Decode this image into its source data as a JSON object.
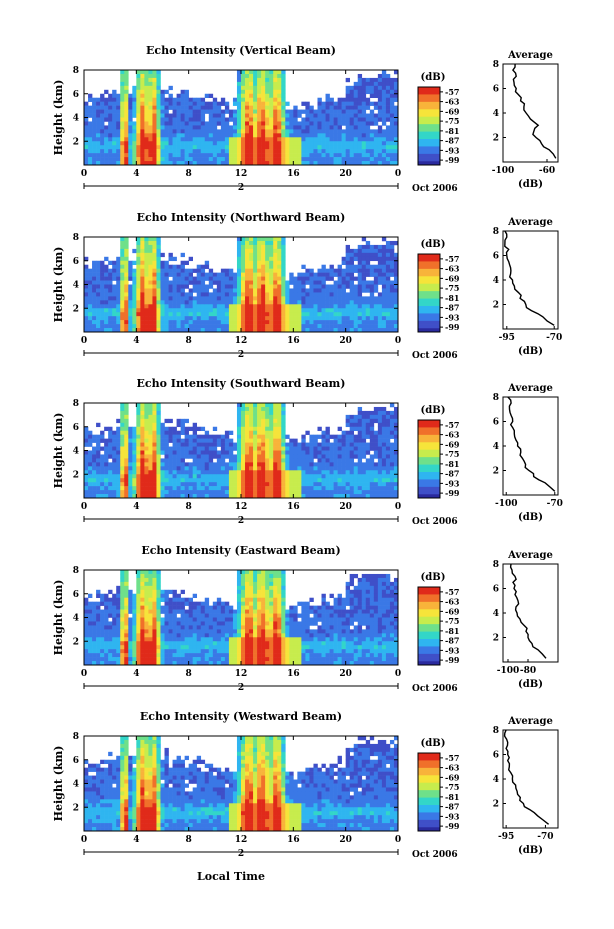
{
  "figure": {
    "xlabel": "Local Time",
    "date_label": "Oct 2006",
    "day_marker": "2",
    "colorbar_unit": "(dB)",
    "profile_title": "Average",
    "profile_xunit": "(dB)"
  },
  "colorbar": {
    "ticks": [
      "-57",
      "-63",
      "-69",
      "-75",
      "-81",
      "-87",
      "-93",
      "-99"
    ],
    "colors": [
      "#2a2a9e",
      "#3f4fc8",
      "#3a78e6",
      "#2fb5f0",
      "#33d6c8",
      "#6fe08a",
      "#c7ec4d",
      "#f6e43a",
      "#f8b33a",
      "#f0702a",
      "#e02a1a"
    ]
  },
  "chart_data": [
    {
      "type": "heatmap",
      "title": "Echo Intensity (Vertical Beam)",
      "xlabel": "",
      "ylabel": "Height (km)",
      "xlim": [
        0,
        24
      ],
      "ylim": [
        0,
        8
      ],
      "xticks": [
        "0",
        "4",
        "8",
        "12",
        "16",
        "20",
        "0"
      ],
      "yticks": [
        "8",
        "6",
        "4",
        "2"
      ],
      "colorbar_range_db": [
        -99,
        -57
      ],
      "profile": {
        "title": "Average",
        "xlabel": "(dB)",
        "xlim": [
          -100,
          -50
        ],
        "xticks": [
          "-100",
          "-60"
        ],
        "ylim": [
          0,
          8
        ],
        "yticks": [
          "8",
          "6",
          "4",
          "2"
        ],
        "height_km": [
          0.3,
          1,
          1.5,
          2,
          2.5,
          3,
          3.5,
          4,
          4.5,
          5,
          5.5,
          6,
          6.5,
          7,
          7.5,
          8
        ],
        "mean_db": [
          -52,
          -58,
          -65,
          -70,
          -72,
          -68,
          -75,
          -79,
          -81,
          -84,
          -86,
          -88,
          -90,
          -88,
          -91,
          -89
        ]
      }
    },
    {
      "type": "heatmap",
      "title": "Echo Intensity (Northward Beam)",
      "xlabel": "",
      "ylabel": "Height (km)",
      "xlim": [
        0,
        24
      ],
      "ylim": [
        0,
        8
      ],
      "xticks": [
        "0",
        "4",
        "8",
        "12",
        "16",
        "20",
        "0"
      ],
      "yticks": [
        "8",
        "6",
        "4",
        "2"
      ],
      "colorbar_range_db": [
        -99,
        -57
      ],
      "profile": {
        "title": "Average",
        "xlabel": "(dB)",
        "xlim": [
          -97,
          -68
        ],
        "xticks": [
          "-95",
          "-70"
        ],
        "ylim": [
          0,
          8
        ],
        "yticks": [
          "8",
          "6",
          "4",
          "2"
        ],
        "height_km": [
          0.3,
          1,
          1.5,
          2,
          2.5,
          3,
          3.5,
          4,
          4.5,
          5,
          5.5,
          6,
          6.5,
          7,
          7.5,
          8
        ],
        "mean_db": [
          -70,
          -76,
          -82,
          -85,
          -88,
          -89,
          -91,
          -92,
          -93,
          -93,
          -94,
          -95,
          -94,
          -96,
          -95,
          -96
        ]
      }
    },
    {
      "type": "heatmap",
      "title": "Echo Intensity (Southward Beam)",
      "xlabel": "",
      "ylabel": "Height (km)",
      "xlim": [
        0,
        24
      ],
      "ylim": [
        0,
        8
      ],
      "xticks": [
        "0",
        "4",
        "8",
        "12",
        "16",
        "20",
        "0"
      ],
      "yticks": [
        "8",
        "6",
        "4",
        "2"
      ],
      "colorbar_range_db": [
        -99,
        -57
      ],
      "profile": {
        "title": "Average",
        "xlabel": "(dB)",
        "xlim": [
          -102,
          -68
        ],
        "xticks": [
          "-100",
          "-70"
        ],
        "ylim": [
          0,
          8
        ],
        "yticks": [
          "8",
          "6",
          "4",
          "2"
        ],
        "height_km": [
          0.3,
          1,
          1.5,
          2,
          2.5,
          3,
          3.5,
          4,
          4.5,
          5,
          5.5,
          6,
          6.5,
          7,
          7.5,
          8
        ],
        "mean_db": [
          -70,
          -76,
          -83,
          -86,
          -88,
          -90,
          -91,
          -93,
          -94,
          -95,
          -96,
          -96,
          -97,
          -98,
          -97,
          -99
        ]
      }
    },
    {
      "type": "heatmap",
      "title": "Echo Intensity (Eastward Beam)",
      "xlabel": "",
      "ylabel": "Height (km)",
      "xlim": [
        0,
        24
      ],
      "ylim": [
        0,
        8
      ],
      "xticks": [
        "0",
        "4",
        "8",
        "12",
        "16",
        "20",
        "0"
      ],
      "yticks": [
        "8",
        "6",
        "4",
        "2"
      ],
      "colorbar_range_db": [
        -99,
        -57
      ],
      "profile": {
        "title": "Average",
        "xlabel": "(dB)",
        "xlim": [
          -105,
          -50
        ],
        "xticks": [
          "-100",
          "-80"
        ],
        "ylim": [
          0,
          8
        ],
        "yticks": [
          "8",
          "6",
          "4",
          "2"
        ],
        "height_km": [
          0.3,
          1,
          1.5,
          2,
          2.5,
          3,
          3.5,
          4,
          4.5,
          5,
          5.5,
          6,
          6.5,
          7,
          7.5,
          8
        ],
        "mean_db": [
          -62,
          -70,
          -76,
          -80,
          -82,
          -84,
          -88,
          -91,
          -92,
          -90,
          -93,
          -94,
          -95,
          -93,
          -96,
          -97
        ]
      }
    },
    {
      "type": "heatmap",
      "title": "Echo Intensity (Westward Beam)",
      "xlabel": "Local Time",
      "ylabel": "Height (km)",
      "xlim": [
        0,
        24
      ],
      "ylim": [
        0,
        8
      ],
      "xticks": [
        "0",
        "4",
        "8",
        "12",
        "16",
        "20",
        "0"
      ],
      "yticks": [
        "8",
        "6",
        "4",
        "2"
      ],
      "colorbar_range_db": [
        -99,
        -57
      ],
      "profile": {
        "title": "Average",
        "xlabel": "(dB)",
        "xlim": [
          -97,
          -62
        ],
        "xticks": [
          "-95",
          "-70"
        ],
        "ylim": [
          0,
          8
        ],
        "yticks": [
          "8",
          "6",
          "4",
          "2"
        ],
        "height_km": [
          0.3,
          1,
          1.5,
          2,
          2.5,
          3,
          3.5,
          4,
          4.5,
          5,
          5.5,
          6,
          6.5,
          7,
          7.5,
          8
        ],
        "mean_db": [
          -68,
          -75,
          -80,
          -84,
          -86,
          -88,
          -89,
          -91,
          -92,
          -93,
          -94,
          -94,
          -95,
          -94,
          -96,
          -95
        ]
      }
    }
  ]
}
